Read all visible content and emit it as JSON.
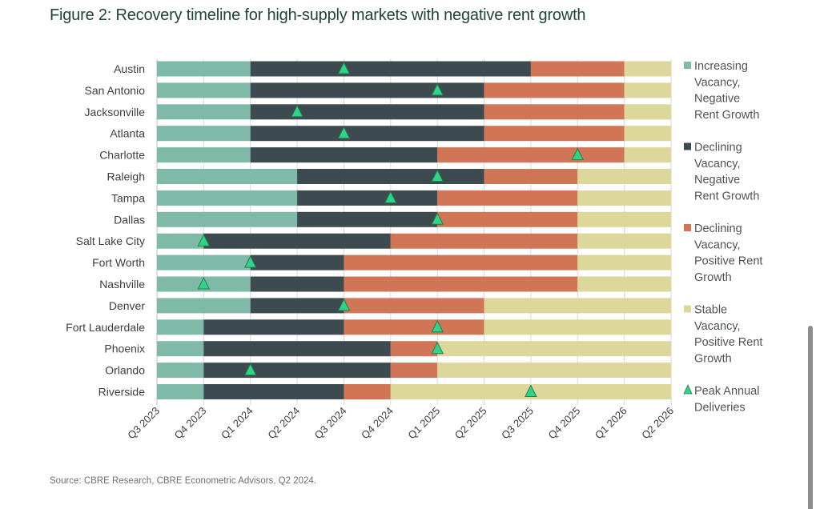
{
  "title": "Figure 2: Recovery timeline for high-supply markets with negative rent growth",
  "source": "Source: CBRE Research, CBRE Econometric Advisors, Q2 2024.",
  "colors": {
    "increasing_vacancy_negative_rent": "#7fbaa9",
    "declining_vacancy_negative_rent": "#3d4a4f",
    "declining_vacancy_positive_rent": "#d07656",
    "stable_vacancy_positive_rent": "#dcd79b",
    "peak_marker": "#2ed488",
    "peak_marker_stroke": "#2a7a4f",
    "grid": "#d9d9d9"
  },
  "chart_data": {
    "type": "bar",
    "subtype": "horizontal-timeline-stacked",
    "title": "Figure 2: Recovery timeline for high-supply markets with negative rent growth",
    "xlabel": "",
    "ylabel": "",
    "x_ticks": [
      "Q3 2023",
      "Q4 2023",
      "Q1 2024",
      "Q2 2024",
      "Q3 2024",
      "Q4 2024",
      "Q1 2025",
      "Q2 2025",
      "Q3 2025",
      "Q4 2025",
      "Q1 2026",
      "Q2 2026"
    ],
    "x_range": [
      "Q3 2023",
      "Q2 2026"
    ],
    "grid": true,
    "legend_position": "right",
    "phases": [
      {
        "name": "Increasing Vacancy, Negative Rent Growth",
        "legend_lines": [
          "Increasing",
          "Vacancy,",
          "Negative",
          "Rent Growth"
        ],
        "color_key": "increasing_vacancy_negative_rent"
      },
      {
        "name": "Declining Vacancy, Negative Rent Growth",
        "legend_lines": [
          "Declining",
          "Vacancy,",
          "Negative",
          "Rent Growth"
        ],
        "color_key": "declining_vacancy_negative_rent"
      },
      {
        "name": "Declining Vacancy, Positive Rent Growth",
        "legend_lines": [
          "Declining",
          "Vacancy,",
          "Positive Rent",
          "Growth"
        ],
        "color_key": "declining_vacancy_positive_rent"
      },
      {
        "name": "Stable Vacancy, Positive Rent Growth",
        "legend_lines": [
          "Stable",
          "Vacancy,",
          "Positive Rent",
          "Growth"
        ],
        "color_key": "stable_vacancy_positive_rent"
      }
    ],
    "marker_legend": {
      "name": "Peak Annual Deliveries",
      "legend_lines": [
        "Peak Annual",
        "Deliveries"
      ]
    },
    "markets": [
      {
        "name": "Austin",
        "phase_boundaries": [
          "Q3 2023",
          "Q1 2024",
          "Q3 2025",
          "Q1 2026",
          "Q2 2026"
        ],
        "peak_deliveries": "Q3 2024"
      },
      {
        "name": "San Antonio",
        "phase_boundaries": [
          "Q3 2023",
          "Q1 2024",
          "Q2 2025",
          "Q1 2026",
          "Q2 2026"
        ],
        "peak_deliveries": "Q1 2025"
      },
      {
        "name": "Jacksonville",
        "phase_boundaries": [
          "Q3 2023",
          "Q1 2024",
          "Q2 2025",
          "Q1 2026",
          "Q2 2026"
        ],
        "peak_deliveries": "Q2 2024"
      },
      {
        "name": "Atlanta",
        "phase_boundaries": [
          "Q3 2023",
          "Q1 2024",
          "Q2 2025",
          "Q1 2026",
          "Q2 2026"
        ],
        "peak_deliveries": "Q3 2024"
      },
      {
        "name": "Charlotte",
        "phase_boundaries": [
          "Q3 2023",
          "Q1 2024",
          "Q1 2025",
          "Q1 2026",
          "Q2 2026"
        ],
        "peak_deliveries": "Q4 2025"
      },
      {
        "name": "Raleigh",
        "phase_boundaries": [
          "Q3 2023",
          "Q2 2024",
          "Q2 2025",
          "Q4 2025",
          "Q2 2026"
        ],
        "peak_deliveries": "Q1 2025"
      },
      {
        "name": "Tampa",
        "phase_boundaries": [
          "Q3 2023",
          "Q2 2024",
          "Q1 2025",
          "Q4 2025",
          "Q2 2026"
        ],
        "peak_deliveries": "Q4 2024"
      },
      {
        "name": "Dallas",
        "phase_boundaries": [
          "Q3 2023",
          "Q2 2024",
          "Q1 2025",
          "Q4 2025",
          "Q2 2026"
        ],
        "peak_deliveries": "Q1 2025"
      },
      {
        "name": "Salt Lake City",
        "phase_boundaries": [
          "Q3 2023",
          "Q4 2023",
          "Q4 2024",
          "Q4 2025",
          "Q2 2026"
        ],
        "peak_deliveries": "Q4 2023"
      },
      {
        "name": "Fort Worth",
        "phase_boundaries": [
          "Q3 2023",
          "Q1 2024",
          "Q3 2024",
          "Q4 2025",
          "Q2 2026"
        ],
        "peak_deliveries": "Q1 2024"
      },
      {
        "name": "Nashville",
        "phase_boundaries": [
          "Q3 2023",
          "Q1 2024",
          "Q3 2024",
          "Q4 2025",
          "Q2 2026"
        ],
        "peak_deliveries": "Q4 2023"
      },
      {
        "name": "Denver",
        "phase_boundaries": [
          "Q3 2023",
          "Q1 2024",
          "Q3 2024",
          "Q2 2025",
          "Q2 2026"
        ],
        "peak_deliveries": "Q3 2024"
      },
      {
        "name": "Fort Lauderdale",
        "phase_boundaries": [
          "Q3 2023",
          "Q4 2023",
          "Q3 2024",
          "Q2 2025",
          "Q2 2026"
        ],
        "peak_deliveries": "Q1 2025"
      },
      {
        "name": "Phoenix",
        "phase_boundaries": [
          "Q3 2023",
          "Q4 2023",
          "Q4 2024",
          "Q1 2025",
          "Q2 2026"
        ],
        "peak_deliveries": "Q1 2025"
      },
      {
        "name": "Orlando",
        "phase_boundaries": [
          "Q3 2023",
          "Q4 2023",
          "Q4 2024",
          "Q1 2025",
          "Q2 2026"
        ],
        "peak_deliveries": "Q1 2024"
      },
      {
        "name": "Riverside",
        "phase_boundaries": [
          "Q3 2023",
          "Q4 2023",
          "Q3 2024",
          "Q4 2024",
          "Q2 2026"
        ],
        "peak_deliveries": "Q3 2025"
      }
    ]
  }
}
